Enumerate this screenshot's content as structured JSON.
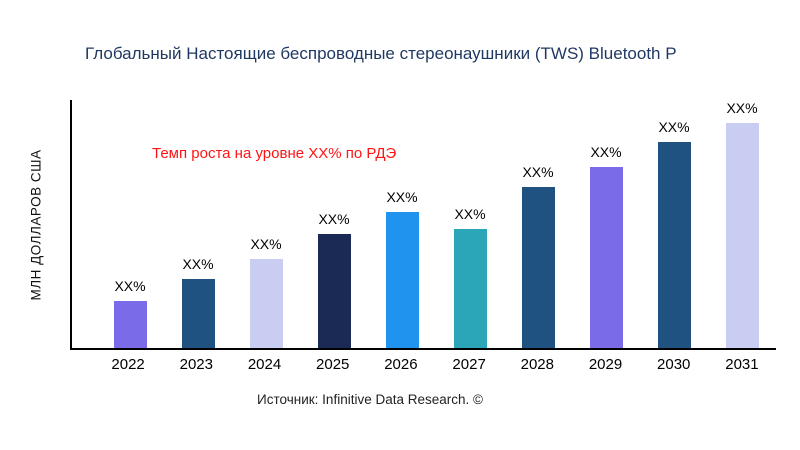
{
  "title": "Глобальный Настоящие беспроводные стереонаушники (TWS) Bluetooth Р",
  "y_axis_label": "МЛН ДОЛЛАРОВ США",
  "annotation": {
    "text": "Темп роста на уровне XX% по РДЭ",
    "color": "#ff1414"
  },
  "source": "Источник: Infinitive Data Research. ©",
  "chart_data": {
    "type": "bar",
    "title": "Глобальный Настоящие беспроводные стереонаушники (TWS) Bluetooth Р",
    "xlabel": "",
    "ylabel": "МЛН ДОЛЛАРОВ США",
    "ylim": [
      0,
      100
    ],
    "grid": false,
    "legend": false,
    "categories": [
      "2022",
      "2023",
      "2024",
      "2025",
      "2026",
      "2027",
      "2028",
      "2029",
      "2030",
      "2031"
    ],
    "values": [
      19,
      28,
      36,
      46,
      55,
      48,
      65,
      73,
      83,
      92
    ],
    "value_labels": [
      "XX%",
      "XX%",
      "XX%",
      "XX%",
      "XX%",
      "XX%",
      "XX%",
      "XX%",
      "XX%",
      "XX%"
    ],
    "bar_colors": [
      "#7a6be8",
      "#1f5281",
      "#c9cdf2",
      "#1b2a55",
      "#2093ef",
      "#2ba6b8",
      "#1f5281",
      "#7a6be8",
      "#1f5281",
      "#c9cdf2"
    ],
    "annotation": "Темп роста на уровне XX% по РДЭ"
  }
}
